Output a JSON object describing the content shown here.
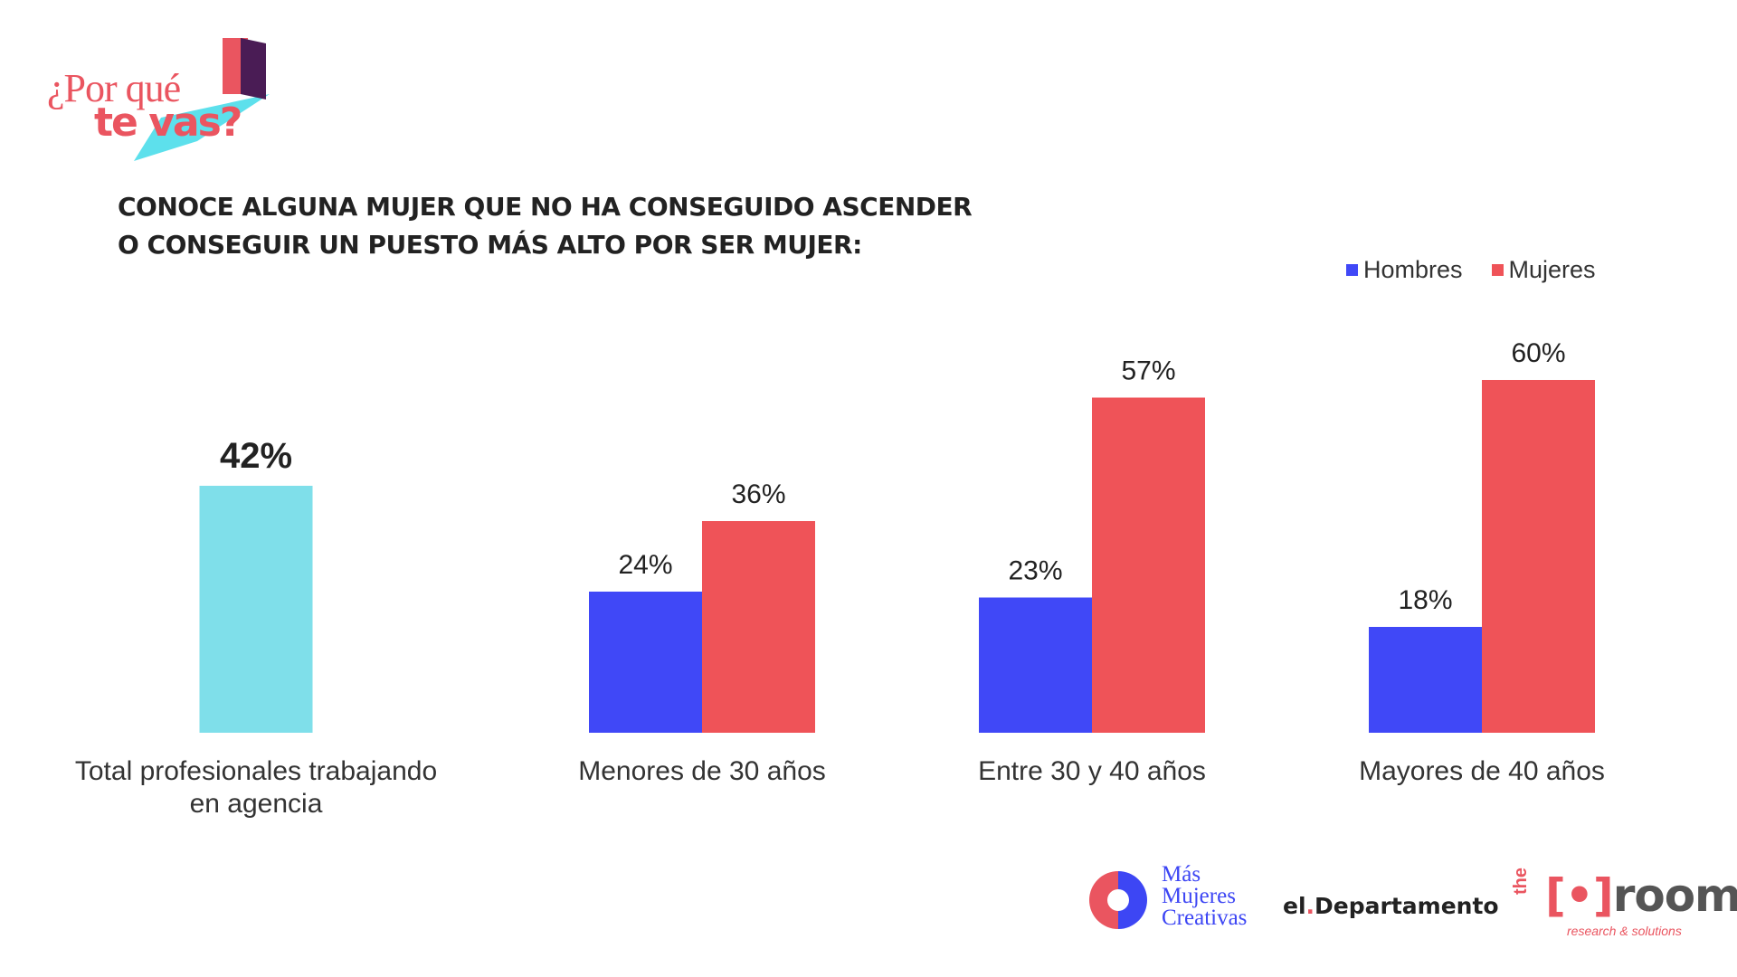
{
  "logo": {
    "line1": "¿Por qué",
    "line2": "te vas?"
  },
  "title": {
    "line1": "CONOCE ALGUNA MUJER QUE NO HA CONSEGUIDO ASCENDER",
    "line2": "O CONSEGUIR UN PUESTO MÁS ALTO POR SER MUJER:"
  },
  "colors": {
    "total": "#7fdfea",
    "hombres": "#4048f7",
    "mujeres": "#ef5358",
    "text": "#222222",
    "brand_red": "#ea5560",
    "brand_blue": "#3d46f4"
  },
  "legend": [
    {
      "label": "Hombres",
      "color": "#4048f7"
    },
    {
      "label": "Mujeres",
      "color": "#ef5358"
    }
  ],
  "chart_data": {
    "type": "bar",
    "ylim": [
      0,
      70
    ],
    "grid": false,
    "legend_position": "top-right",
    "groups": [
      {
        "category": "Total profesionales trabajando en agencia",
        "label_lines": [
          "Total profesionales trabajando",
          "en agencia"
        ],
        "bars": [
          {
            "series": "Total",
            "value": 42,
            "label": "42%"
          }
        ]
      },
      {
        "category": "Menores de 30 años",
        "label_lines": [
          "Menores de 30 años"
        ],
        "bars": [
          {
            "series": "Hombres",
            "value": 24,
            "label": "24%"
          },
          {
            "series": "Mujeres",
            "value": 36,
            "label": "36%"
          }
        ]
      },
      {
        "category": "Entre 30 y 40 años",
        "label_lines": [
          "Entre 30 y 40 años"
        ],
        "bars": [
          {
            "series": "Hombres",
            "value": 23,
            "label": "23%"
          },
          {
            "series": "Mujeres",
            "value": 57,
            "label": "57%"
          }
        ]
      },
      {
        "category": "Mayores de 40 años",
        "label_lines": [
          "Mayores de 40 años"
        ],
        "bars": [
          {
            "series": "Hombres",
            "value": 18,
            "label": "18%"
          },
          {
            "series": "Mujeres",
            "value": 60,
            "label": "60%"
          }
        ]
      }
    ]
  },
  "footer": {
    "mmc": [
      "Más",
      "Mujeres",
      "Creativas"
    ],
    "eldep_a": "el",
    "eldep_dot": ".",
    "eldep_b": "Departamento",
    "room_the": "the",
    "room_left": "[",
    "room_mark": "•",
    "room_right": "]",
    "room_word": "room",
    "room_sub": "research & solutions"
  }
}
